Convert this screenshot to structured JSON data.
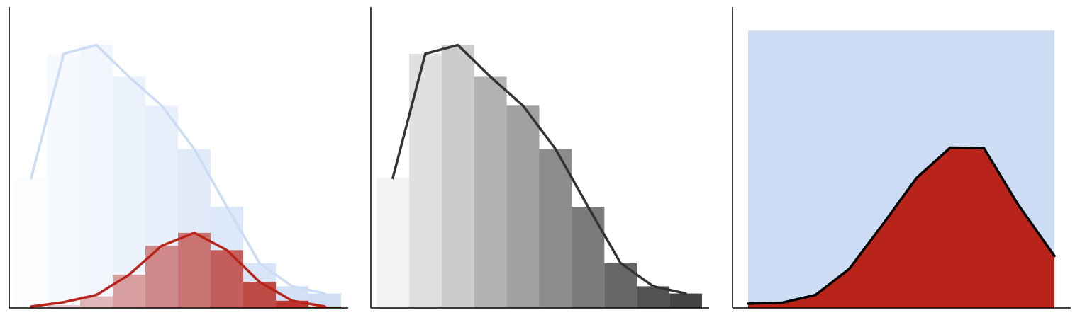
{
  "colors": {
    "light_blue": "#ccdcf4",
    "red": "#b82419",
    "dark_gray": "#333333",
    "axis": "#000000"
  },
  "chart_data": [
    {
      "type": "bar",
      "panel": "left",
      "title": "",
      "xlabel": "",
      "ylabel": "",
      "xlim": [
        0,
        10
      ],
      "ylim": [
        0,
        1
      ],
      "series": [
        {
          "x": [
            0.5,
            1.5,
            2.5,
            3.5,
            4.5,
            5.5,
            6.5,
            7.5,
            8.5,
            9.5
          ],
          "values": [
            0.45,
            0.88,
            0.91,
            0.8,
            0.7,
            0.55,
            0.35,
            0.155,
            0.075,
            0.05
          ],
          "line_values": [
            0.45,
            0.88,
            0.91,
            0.8,
            0.7,
            0.55,
            0.35,
            0.155,
            0.075,
            0.05
          ],
          "color": "#ccdcf4",
          "bar_alpha_start": 0.08,
          "bar_alpha_end": 0.95,
          "line_color": "#ccdcf4"
        },
        {
          "x": [
            0.5,
            1.5,
            2.5,
            3.5,
            4.5,
            5.5,
            6.5,
            7.5,
            8.5,
            9.5
          ],
          "values": [
            0.0,
            0.01,
            0.04,
            0.115,
            0.215,
            0.26,
            0.2,
            0.09,
            0.025,
            0.005
          ],
          "line_values": [
            0.005,
            0.02,
            0.045,
            0.115,
            0.215,
            0.26,
            0.2,
            0.09,
            0.025,
            0.005
          ],
          "color": "#b82419",
          "bar_alpha_start": 0.1,
          "bar_alpha_end": 1.0,
          "line_color": "#b82419"
        }
      ]
    },
    {
      "type": "bar",
      "panel": "middle",
      "title": "",
      "xlabel": "",
      "ylabel": "",
      "xlim": [
        0,
        10
      ],
      "ylim": [
        0,
        1
      ],
      "series": [
        {
          "x": [
            0.5,
            1.5,
            2.5,
            3.5,
            4.5,
            5.5,
            6.5,
            7.5,
            8.5,
            9.5
          ],
          "values": [
            0.45,
            0.88,
            0.91,
            0.8,
            0.7,
            0.55,
            0.35,
            0.155,
            0.075,
            0.05
          ],
          "line_values": [
            0.45,
            0.88,
            0.91,
            0.8,
            0.7,
            0.55,
            0.35,
            0.155,
            0.075,
            0.05
          ],
          "bar_colors": [
            "#f2f2f2",
            "#e0e0e0",
            "#cccccc",
            "#b3b3b3",
            "#a0a0a0",
            "#8c8c8c",
            "#7a7a7a",
            "#666666",
            "#535353",
            "#444444"
          ],
          "line_color": "#333333"
        }
      ]
    },
    {
      "type": "area",
      "panel": "right",
      "title": "",
      "xlabel": "",
      "ylabel": "",
      "xlim": [
        0,
        10
      ],
      "ylim": [
        0,
        1
      ],
      "background_fill": {
        "y_top": 0.96,
        "color": "#ccdcf4"
      },
      "series": [
        {
          "x": [
            0,
            1.1,
            2.2,
            3.3,
            4.4,
            5.5,
            6.6,
            7.7,
            8.8,
            10
          ],
          "values": [
            0.015,
            0.018,
            0.045,
            0.135,
            0.29,
            0.45,
            0.555,
            0.553,
            0.36,
            0.18
          ],
          "fill_color": "#b82419",
          "line_color": "#000000"
        }
      ]
    }
  ]
}
